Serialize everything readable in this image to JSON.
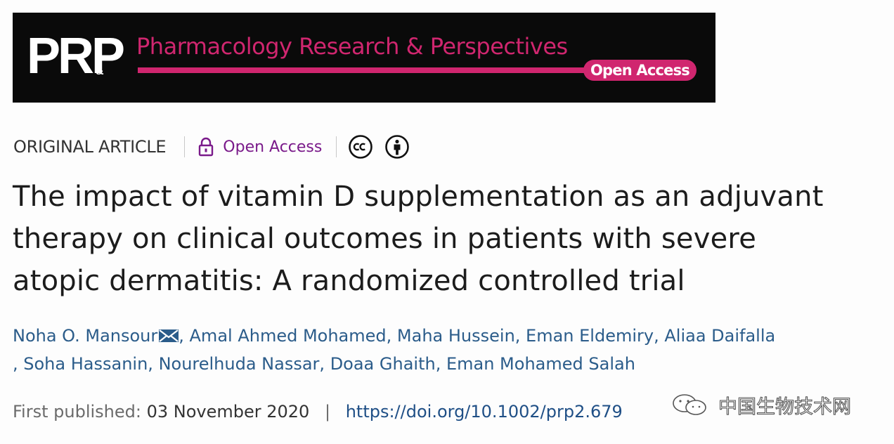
{
  "banner": {
    "logo": "PRP",
    "logo_amp": "&",
    "journal_title": "Pharmacology Research & Perspectives",
    "open_access_badge": "Open Access",
    "accent_color": "#d0266f"
  },
  "meta": {
    "article_type": "ORIGINAL ARTICLE",
    "lock_icon": "lock-icon",
    "open_access_label": "Open Access",
    "license_icons": [
      "creative-commons-icon",
      "attribution-icon"
    ]
  },
  "title": {
    "line1": "The impact of vitamin D supplementation as an adjuvant",
    "line2": "therapy on clinical outcomes in patients with severe",
    "line3": "atopic dermatitis: A randomized controlled trial"
  },
  "authors": [
    "Noha O. Mansour",
    "Amal Ahmed Mohamed",
    "Maha Hussein",
    "Eman Eldemiry",
    "Aliaa Daifalla",
    "Soha Hassanin",
    "Nourelhuda Nassar",
    "Doaa Ghaith",
    "Eman Mohamed Salah"
  ],
  "published": {
    "label": "First published:",
    "date": "03 November 2020",
    "separator": "|",
    "doi": "https://doi.org/10.1002/prp2.679"
  },
  "watermark": {
    "text": "中国生物技术网"
  }
}
